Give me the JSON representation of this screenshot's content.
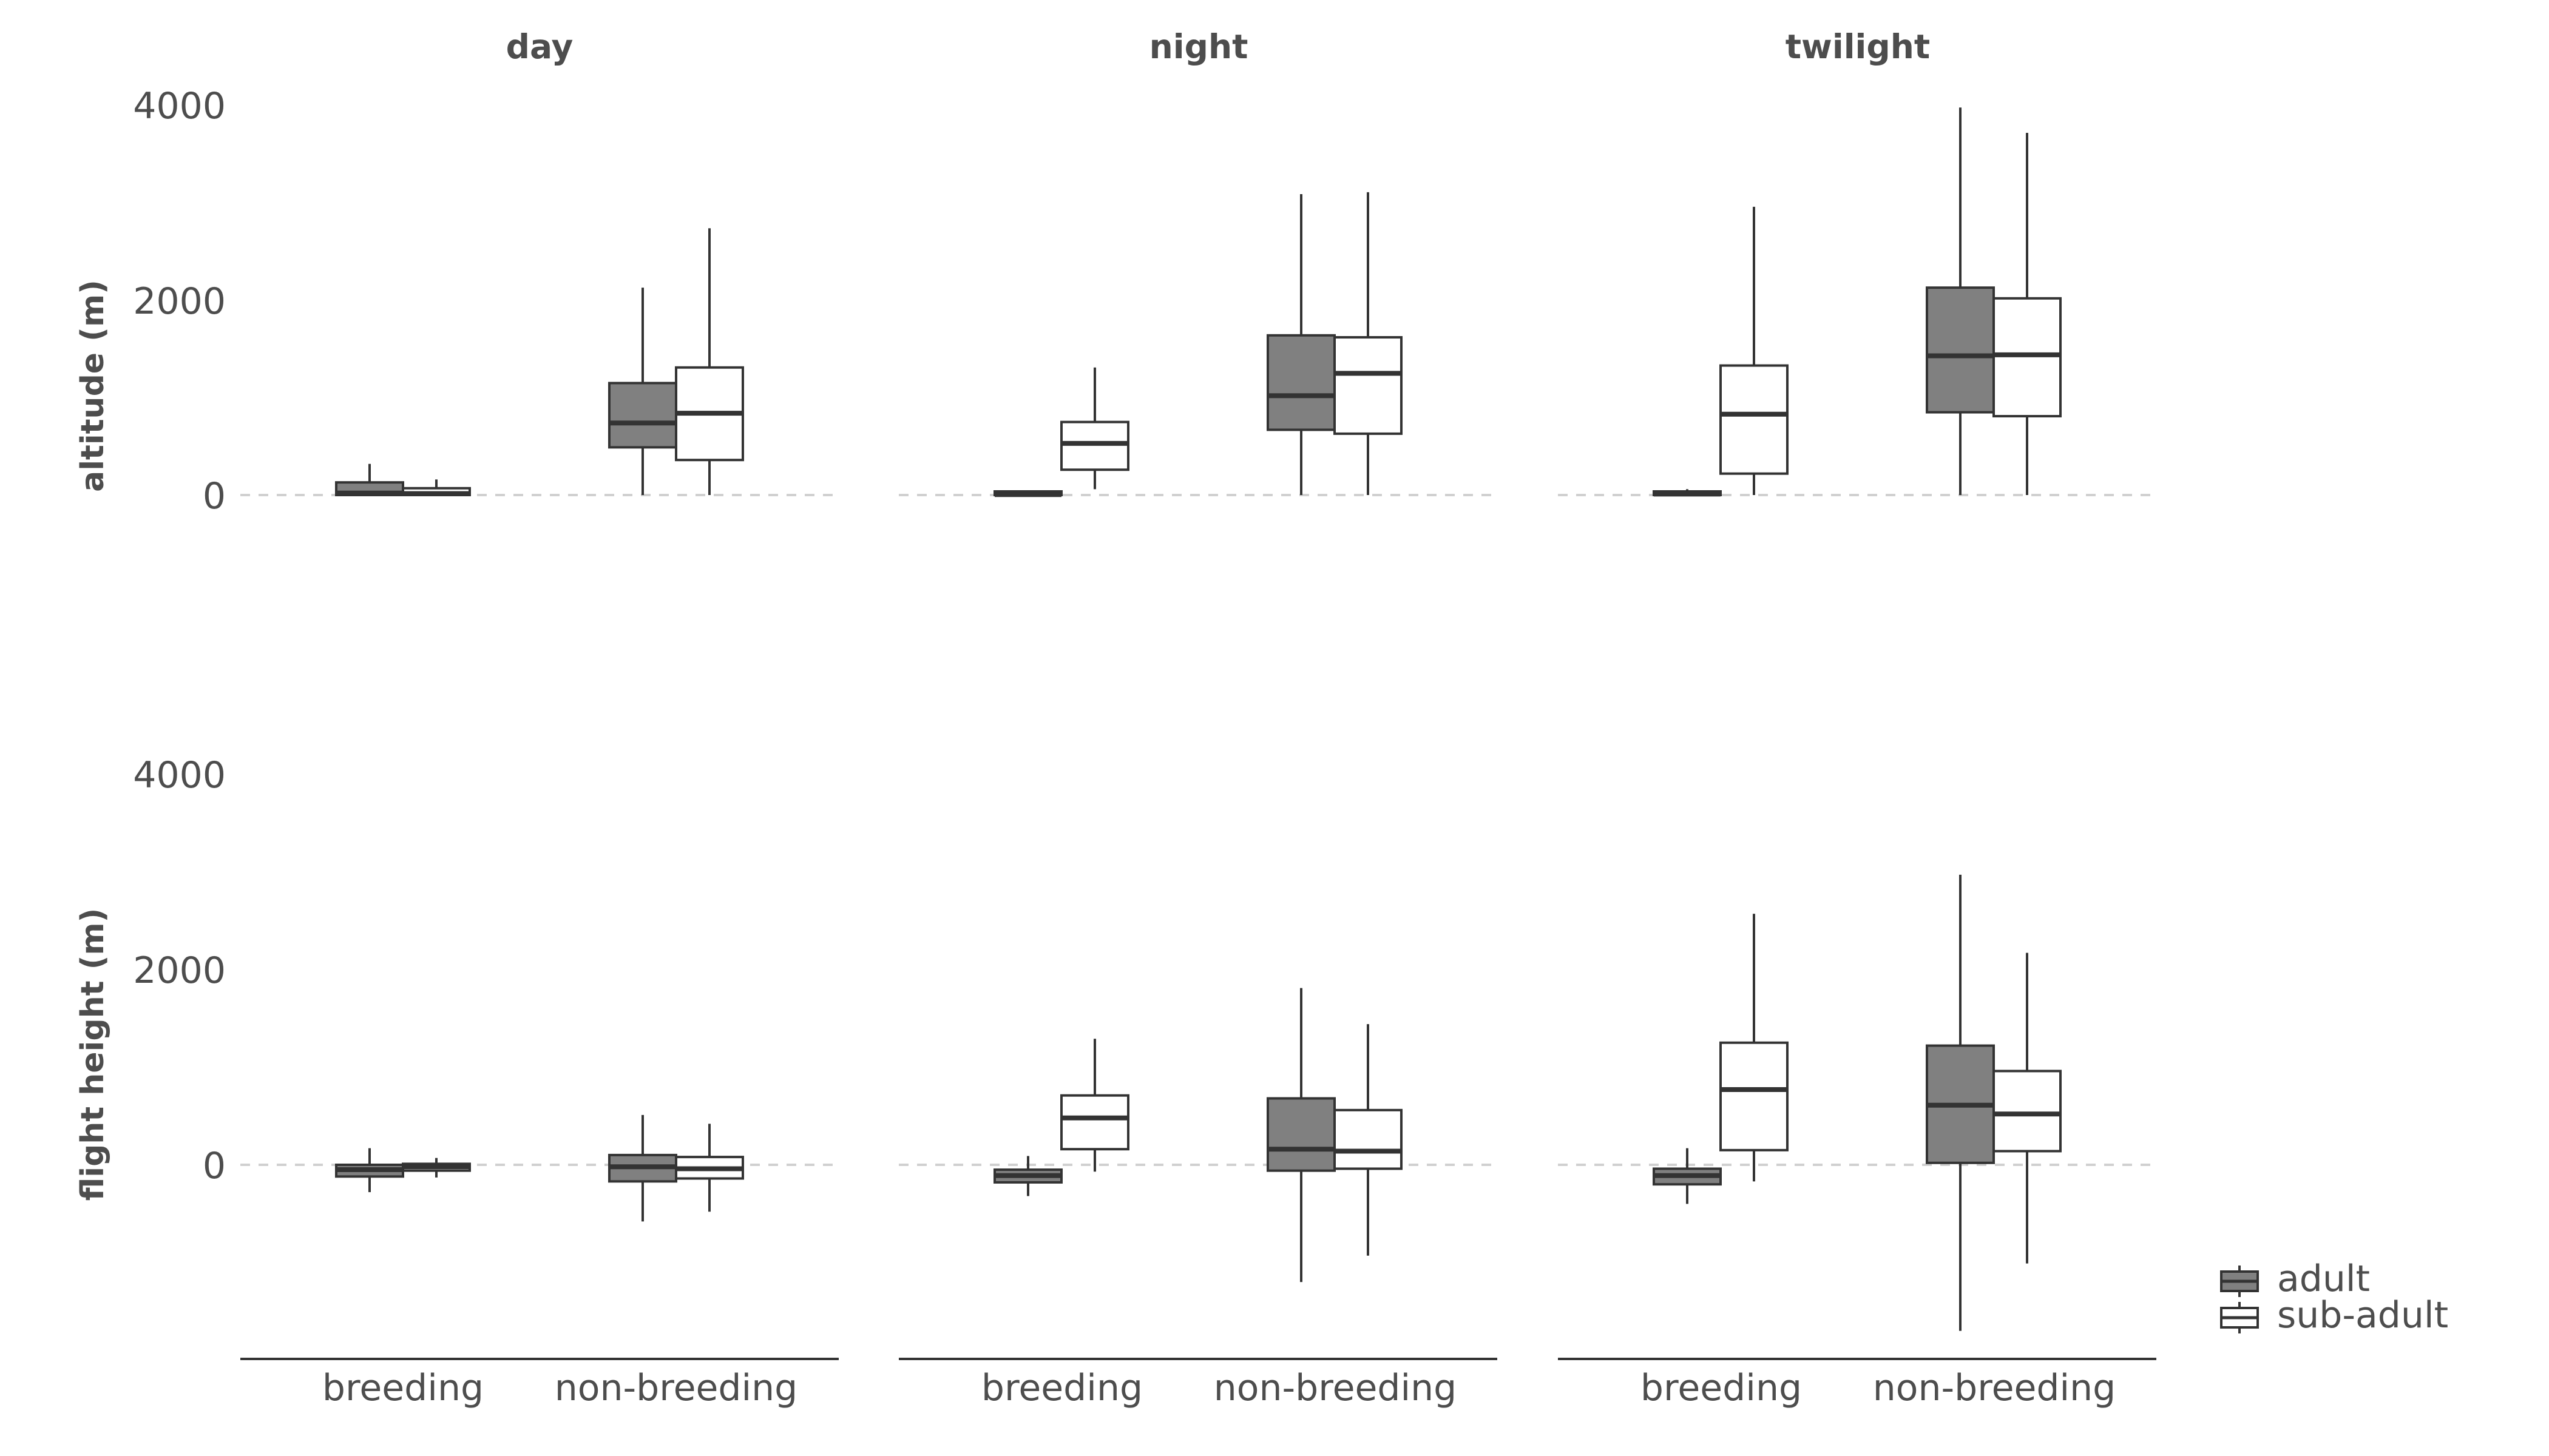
{
  "chart_data": {
    "type": "boxplot",
    "facet_columns": [
      "day",
      "night",
      "twilight"
    ],
    "facet_rows": [
      "altitude (m)",
      "flight height (m)"
    ],
    "categories": [
      "breeding",
      "non-breeding"
    ],
    "groups": [
      "adult",
      "sub-adult"
    ],
    "group_colors": {
      "adult": "#808080",
      "sub-adult": "#ffffff"
    },
    "y_ticks": [
      "0",
      "2000",
      "4000"
    ],
    "y_ranges": {
      "altitude (m)": [
        0,
        4000
      ],
      "flight height (m)": [
        -1700,
        4000
      ]
    },
    "reference_line": 0,
    "legend": {
      "position": "right-bottom",
      "entries": [
        "adult",
        "sub-adult"
      ]
    },
    "panels": [
      {
        "row": "altitude (m)",
        "column": "day",
        "boxes": [
          {
            "category": "breeding",
            "group": "adult",
            "whisker_low": 0,
            "q1": 0,
            "median": 20,
            "q3": 130,
            "whisker_high": 320
          },
          {
            "category": "breeding",
            "group": "sub-adult",
            "whisker_low": 0,
            "q1": 0,
            "median": 15,
            "q3": 70,
            "whisker_high": 160
          },
          {
            "category": "non-breeding",
            "group": "adult",
            "whisker_low": 0,
            "q1": 490,
            "median": 740,
            "q3": 1150,
            "whisker_high": 2130
          },
          {
            "category": "non-breeding",
            "group": "sub-adult",
            "whisker_low": 0,
            "q1": 360,
            "median": 840,
            "q3": 1310,
            "whisker_high": 2740
          }
        ]
      },
      {
        "row": "altitude (m)",
        "column": "night",
        "boxes": [
          {
            "category": "breeding",
            "group": "adult",
            "whisker_low": 0,
            "q1": 0,
            "median": 5,
            "q3": 15,
            "whisker_high": 30
          },
          {
            "category": "breeding",
            "group": "sub-adult",
            "whisker_low": 60,
            "q1": 260,
            "median": 530,
            "q3": 750,
            "whisker_high": 1310
          },
          {
            "category": "non-breeding",
            "group": "adult",
            "whisker_low": 0,
            "q1": 670,
            "median": 1020,
            "q3": 1640,
            "whisker_high": 3090
          },
          {
            "category": "non-breeding",
            "group": "sub-adult",
            "whisker_low": 0,
            "q1": 630,
            "median": 1250,
            "q3": 1620,
            "whisker_high": 3110
          }
        ]
      },
      {
        "row": "altitude (m)",
        "column": "twilight",
        "boxes": [
          {
            "category": "breeding",
            "group": "adult",
            "whisker_low": 0,
            "q1": 0,
            "median": 10,
            "q3": 30,
            "whisker_high": 60
          },
          {
            "category": "breeding",
            "group": "sub-adult",
            "whisker_low": 0,
            "q1": 220,
            "median": 830,
            "q3": 1330,
            "whisker_high": 2960
          },
          {
            "category": "non-breeding",
            "group": "adult",
            "whisker_low": 0,
            "q1": 850,
            "median": 1430,
            "q3": 2130,
            "whisker_high": 3980
          },
          {
            "category": "non-breeding",
            "group": "sub-adult",
            "whisker_low": 0,
            "q1": 810,
            "median": 1440,
            "q3": 2020,
            "whisker_high": 3720
          }
        ]
      },
      {
        "row": "flight height (m)",
        "column": "day",
        "boxes": [
          {
            "category": "breeding",
            "group": "adult",
            "whisker_low": -280,
            "q1": -120,
            "median": -50,
            "q3": 0,
            "whisker_high": 170
          },
          {
            "category": "breeding",
            "group": "sub-adult",
            "whisker_low": -130,
            "q1": -60,
            "median": -20,
            "q3": 10,
            "whisker_high": 70
          },
          {
            "category": "non-breeding",
            "group": "adult",
            "whisker_low": -580,
            "q1": -170,
            "median": -20,
            "q3": 100,
            "whisker_high": 510
          },
          {
            "category": "non-breeding",
            "group": "sub-adult",
            "whisker_low": -480,
            "q1": -140,
            "median": -40,
            "q3": 80,
            "whisker_high": 420
          }
        ]
      },
      {
        "row": "flight height (m)",
        "column": "night",
        "boxes": [
          {
            "category": "breeding",
            "group": "adult",
            "whisker_low": -320,
            "q1": -180,
            "median": -110,
            "q3": -50,
            "whisker_high": 90
          },
          {
            "category": "breeding",
            "group": "sub-adult",
            "whisker_low": -70,
            "q1": 160,
            "median": 480,
            "q3": 710,
            "whisker_high": 1290
          },
          {
            "category": "non-breeding",
            "group": "adult",
            "whisker_low": -1200,
            "q1": -60,
            "median": 160,
            "q3": 680,
            "whisker_high": 1810
          },
          {
            "category": "non-breeding",
            "group": "sub-adult",
            "whisker_low": -930,
            "q1": -40,
            "median": 140,
            "q3": 560,
            "whisker_high": 1440
          }
        ]
      },
      {
        "row": "flight height (m)",
        "column": "twilight",
        "boxes": [
          {
            "category": "breeding",
            "group": "adult",
            "whisker_low": -400,
            "q1": -200,
            "median": -110,
            "q3": -40,
            "whisker_high": 170
          },
          {
            "category": "breeding",
            "group": "sub-adult",
            "whisker_low": -170,
            "q1": 150,
            "median": 770,
            "q3": 1250,
            "whisker_high": 2570
          },
          {
            "category": "non-breeding",
            "group": "adult",
            "whisker_low": -1700,
            "q1": 20,
            "median": 610,
            "q3": 1220,
            "whisker_high": 2970
          },
          {
            "category": "non-breeding",
            "group": "sub-adult",
            "whisker_low": -1010,
            "q1": 140,
            "median": 520,
            "q3": 960,
            "whisker_high": 2170
          }
        ]
      }
    ]
  }
}
